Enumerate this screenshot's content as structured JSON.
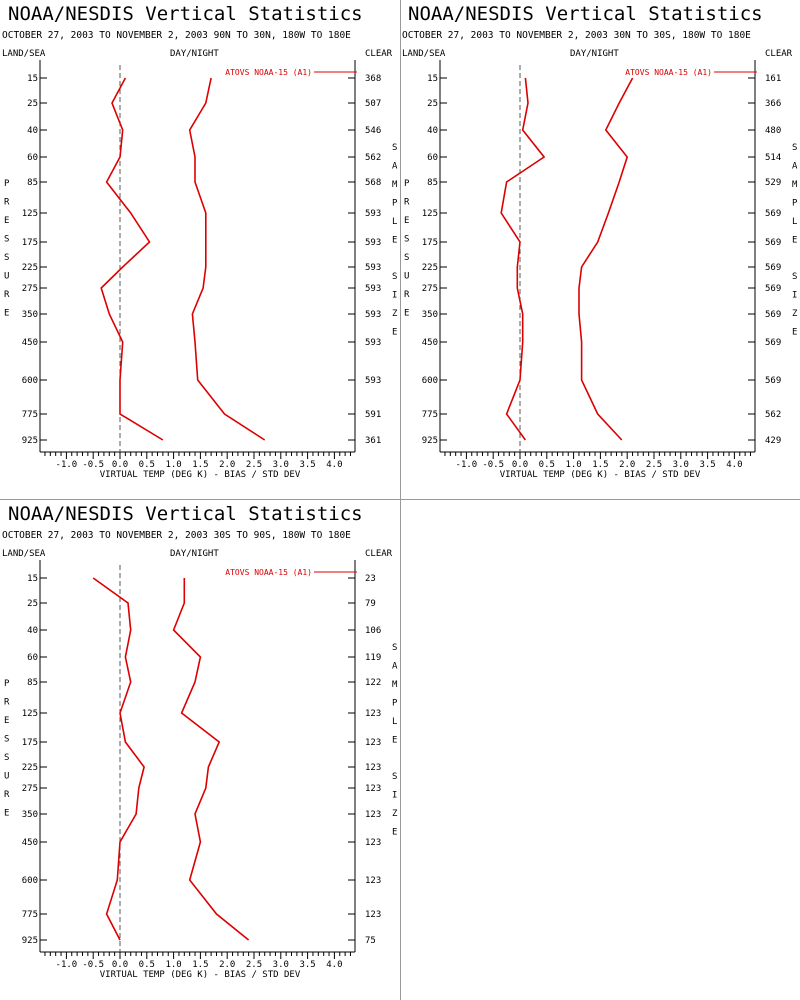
{
  "colors": {
    "series": "#dd0000",
    "axis": "#000000",
    "divider": "#999999",
    "zero_line": "#555555"
  },
  "shared": {
    "title": "NOAA/NESDIS Vertical Statistics",
    "header_left": "LAND/SEA",
    "header_mid": "DAY/NIGHT",
    "header_right": "CLEAR",
    "pressure_label": "PRESSURE",
    "sample_label": "SAMPLE SIZE",
    "legend": "ATOVS NOAA-15 (A1)"
  },
  "chart_data": [
    {
      "type": "line",
      "title": "NOAA/NESDIS Vertical Statistics",
      "subtitle": "OCTOBER 27, 2003 TO NOVEMBER 2, 2003 90N TO 30N, 180W TO 180E",
      "xlabel": "VIRTUAL TEMP (DEG K) - BIAS / STD DEV",
      "ylabel": "PRESSURE",
      "xlim": [
        -1.5,
        4.5
      ],
      "x_ticks": [
        -1.0,
        -0.5,
        0.0,
        0.5,
        1.0,
        1.5,
        2.0,
        2.5,
        3.0,
        3.5,
        4.0
      ],
      "x_tick_labels": [
        "-1.0",
        "-0.5",
        "0.0",
        "0.5",
        "1.0",
        "1.5",
        "2.0",
        "2.5",
        "3.0",
        "3.5",
        "4.0"
      ],
      "pressure_levels": [
        15,
        25,
        40,
        60,
        85,
        125,
        175,
        225,
        275,
        350,
        450,
        600,
        775,
        925
      ],
      "pressure_labels": [
        "15",
        "25",
        "40",
        "60",
        "85",
        "125",
        "175",
        "225",
        "275",
        "350",
        "450",
        "600",
        "775",
        "925"
      ],
      "sample_size": [
        "368",
        "507",
        "546",
        "562",
        "568",
        "593",
        "593",
        "593",
        "593",
        "593",
        "593",
        "593",
        "591",
        "361"
      ],
      "legend": "ATOVS NOAA-15 (A1)",
      "series": [
        {
          "name": "ATOVS NOAA-15 (A1)",
          "role": "bias",
          "values": [
            0.1,
            -0.15,
            0.05,
            0.0,
            -0.25,
            0.2,
            0.55,
            0.05,
            -0.35,
            -0.2,
            0.05,
            0.0,
            0.0,
            0.8
          ]
        },
        {
          "name": "ATOVS NOAA-15 (A1)",
          "role": "std_dev",
          "values": [
            1.7,
            1.6,
            1.3,
            1.4,
            1.4,
            1.6,
            1.6,
            1.6,
            1.55,
            1.35,
            1.4,
            1.45,
            1.95,
            2.7
          ]
        }
      ]
    },
    {
      "type": "line",
      "title": "NOAA/NESDIS Vertical Statistics",
      "subtitle": "OCTOBER 27, 2003 TO NOVEMBER 2, 2003 30N TO 30S, 180W TO 180E",
      "xlabel": "VIRTUAL TEMP (DEG K) - BIAS / STD DEV",
      "ylabel": "PRESSURE",
      "xlim": [
        -1.5,
        4.5
      ],
      "x_ticks": [
        -1.0,
        -0.5,
        0.0,
        0.5,
        1.0,
        1.5,
        2.0,
        2.5,
        3.0,
        3.5,
        4.0
      ],
      "x_tick_labels": [
        "-1.0",
        "-0.5",
        "0.0",
        "0.5",
        "1.0",
        "1.5",
        "2.0",
        "2.5",
        "3.0",
        "3.5",
        "4.0"
      ],
      "pressure_levels": [
        15,
        25,
        40,
        60,
        85,
        125,
        175,
        225,
        275,
        350,
        450,
        600,
        775,
        925
      ],
      "pressure_labels": [
        "15",
        "25",
        "40",
        "60",
        "85",
        "125",
        "175",
        "225",
        "275",
        "350",
        "450",
        "600",
        "775",
        "925"
      ],
      "sample_size": [
        "161",
        "366",
        "480",
        "514",
        "529",
        "569",
        "569",
        "569",
        "569",
        "569",
        "569",
        "569",
        "562",
        "429"
      ],
      "legend": "ATOVS NOAA-15 (A1)",
      "series": [
        {
          "name": "ATOVS NOAA-15 (A1)",
          "role": "bias",
          "values": [
            0.1,
            0.15,
            0.05,
            0.45,
            -0.25,
            -0.35,
            0.0,
            -0.05,
            -0.05,
            0.05,
            0.05,
            0.0,
            -0.25,
            0.1
          ]
        },
        {
          "name": "ATOVS NOAA-15 (A1)",
          "role": "std_dev",
          "values": [
            2.1,
            1.85,
            1.6,
            2.0,
            1.85,
            1.65,
            1.45,
            1.15,
            1.1,
            1.1,
            1.15,
            1.15,
            1.45,
            1.9
          ]
        }
      ]
    },
    {
      "type": "line",
      "title": "NOAA/NESDIS Vertical Statistics",
      "subtitle": "OCTOBER 27, 2003 TO NOVEMBER 2, 2003 30S TO 90S, 180W TO 180E",
      "xlabel": "VIRTUAL TEMP (DEG K) - BIAS / STD DEV",
      "ylabel": "PRESSURE",
      "xlim": [
        -1.5,
        4.5
      ],
      "x_ticks": [
        -1.0,
        -0.5,
        0.0,
        0.5,
        1.0,
        1.5,
        2.0,
        2.5,
        3.0,
        3.5,
        4.0
      ],
      "x_tick_labels": [
        "-1.0",
        "-0.5",
        "0.0",
        "0.5",
        "1.0",
        "1.5",
        "2.0",
        "2.5",
        "3.0",
        "3.5",
        "4.0"
      ],
      "pressure_levels": [
        15,
        25,
        40,
        60,
        85,
        125,
        175,
        225,
        275,
        350,
        450,
        600,
        775,
        925
      ],
      "pressure_labels": [
        "15",
        "25",
        "40",
        "60",
        "85",
        "125",
        "175",
        "225",
        "275",
        "350",
        "450",
        "600",
        "775",
        "925"
      ],
      "sample_size": [
        "23",
        "79",
        "106",
        "119",
        "122",
        "123",
        "123",
        "123",
        "123",
        "123",
        "123",
        "123",
        "123",
        "75"
      ],
      "legend": "ATOVS NOAA-15 (A1)",
      "series": [
        {
          "name": "ATOVS NOAA-15 (A1)",
          "role": "bias",
          "values": [
            -0.5,
            0.15,
            0.2,
            0.1,
            0.2,
            0.0,
            0.1,
            0.45,
            0.35,
            0.3,
            0.0,
            -0.05,
            -0.25,
            0.0
          ]
        },
        {
          "name": "ATOVS NOAA-15 (A1)",
          "role": "std_dev",
          "values": [
            1.2,
            1.2,
            1.0,
            1.5,
            1.4,
            1.15,
            1.85,
            1.65,
            1.6,
            1.4,
            1.5,
            1.3,
            1.8,
            2.4
          ]
        }
      ]
    }
  ]
}
